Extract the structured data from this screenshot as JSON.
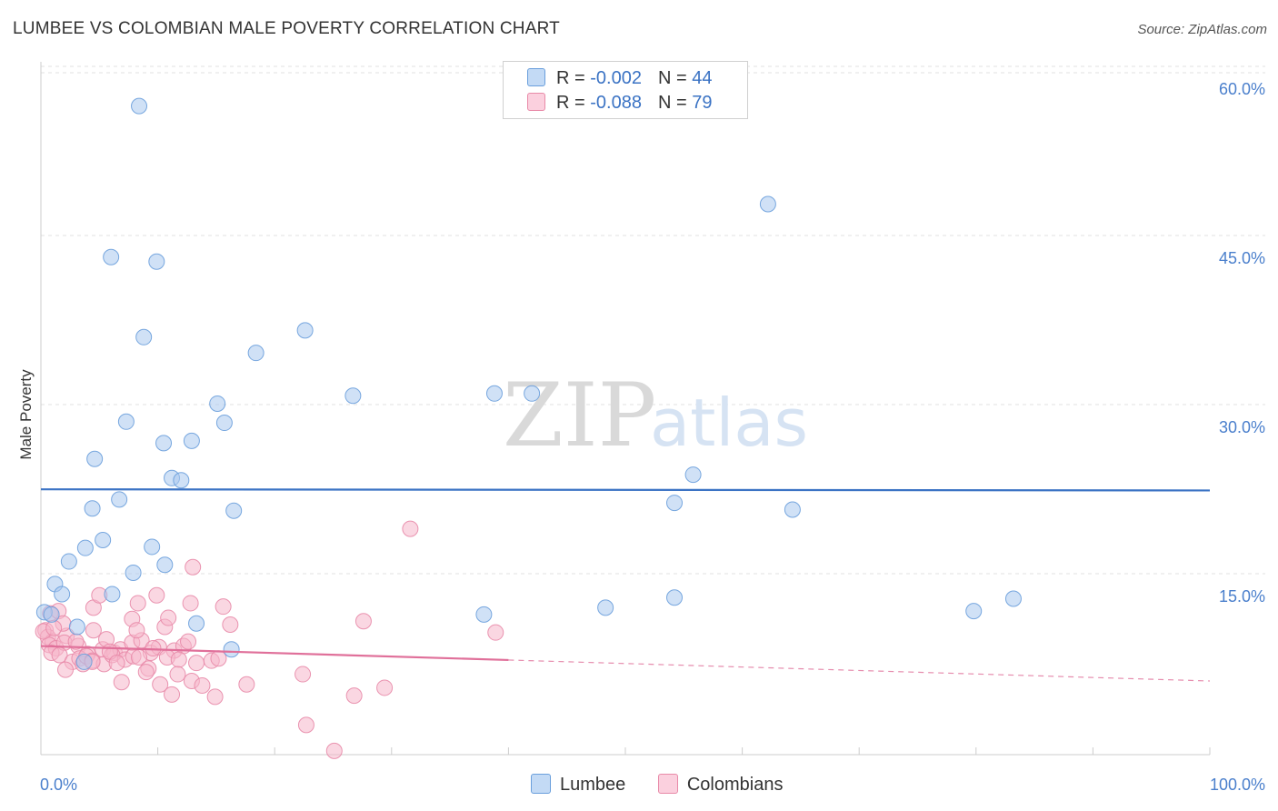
{
  "header": {
    "title": "LUMBEE VS COLOMBIAN MALE POVERTY CORRELATION CHART",
    "source": "Source: ZipAtlas.com"
  },
  "watermark": {
    "zip": "ZIP",
    "atlas": "atlas"
  },
  "legend": {
    "rows": [
      {
        "r_label": "R = ",
        "r_value": "-0.002",
        "n_label": "N = ",
        "n_value": "44"
      },
      {
        "r_label": "R = ",
        "r_value": "-0.088",
        "n_label": "N = ",
        "n_value": "79"
      }
    ]
  },
  "chart_data": {
    "type": "scatter",
    "title": "LUMBEE VS COLOMBIAN MALE POVERTY CORRELATION CHART",
    "xlabel": "",
    "ylabel": "Male Poverty",
    "xlim": [
      0,
      100
    ],
    "ylim": [
      0,
      63
    ],
    "x_tick_labels": [
      "0.0%",
      "100.0%"
    ],
    "y_ticks": [
      15,
      30,
      45,
      60
    ],
    "y_tick_labels": [
      "15.0%",
      "30.0%",
      "45.0%",
      "60.0%"
    ],
    "grid": true,
    "legend_position": "top-center",
    "colors": {
      "lumbee_fill": "#a9c8ef",
      "lumbee_stroke": "#6a9fdc",
      "lumbee_line": "#3b73c4",
      "colombian_fill": "#f6b6cb",
      "colombian_stroke": "#e88aa8",
      "colombian_line": "#e0709a"
    },
    "series": [
      {
        "name": "Lumbee",
        "trend": {
          "x": [
            0,
            100
          ],
          "y": [
            24.5,
            24.4
          ],
          "dashed_from": null
        },
        "points": [
          [
            8.4,
            58.5
          ],
          [
            6.0,
            45.1
          ],
          [
            9.9,
            44.7
          ],
          [
            62.2,
            49.8
          ],
          [
            8.8,
            38.0
          ],
          [
            18.4,
            36.6
          ],
          [
            22.6,
            38.6
          ],
          [
            26.7,
            32.8
          ],
          [
            15.1,
            32.1
          ],
          [
            38.8,
            33.0
          ],
          [
            42.0,
            33.0
          ],
          [
            7.3,
            30.5
          ],
          [
            10.5,
            28.6
          ],
          [
            12.9,
            28.8
          ],
          [
            15.7,
            30.4
          ],
          [
            4.6,
            27.2
          ],
          [
            11.2,
            25.5
          ],
          [
            12.0,
            25.3
          ],
          [
            55.8,
            25.8
          ],
          [
            4.4,
            22.8
          ],
          [
            6.7,
            23.6
          ],
          [
            16.5,
            22.6
          ],
          [
            54.2,
            23.3
          ],
          [
            64.3,
            22.7
          ],
          [
            5.3,
            20.0
          ],
          [
            3.8,
            19.3
          ],
          [
            9.5,
            19.4
          ],
          [
            2.4,
            18.1
          ],
          [
            10.6,
            17.8
          ],
          [
            7.9,
            17.1
          ],
          [
            1.2,
            16.1
          ],
          [
            1.8,
            15.2
          ],
          [
            6.1,
            15.2
          ],
          [
            0.3,
            13.6
          ],
          [
            0.9,
            13.4
          ],
          [
            37.9,
            13.4
          ],
          [
            48.3,
            14.0
          ],
          [
            54.2,
            14.9
          ],
          [
            79.8,
            13.7
          ],
          [
            83.2,
            14.8
          ],
          [
            3.1,
            12.3
          ],
          [
            13.3,
            12.6
          ],
          [
            16.3,
            10.3
          ],
          [
            3.7,
            9.2
          ]
        ]
      },
      {
        "name": "Colombians",
        "trend": {
          "x": [
            0,
            100
          ],
          "y": [
            10.6,
            7.5
          ],
          "dashed_from": 40
        },
        "points": [
          [
            31.6,
            21.0
          ],
          [
            13.0,
            17.6
          ],
          [
            0.8,
            13.5
          ],
          [
            1.5,
            13.7
          ],
          [
            4.5,
            14.0
          ],
          [
            5.0,
            15.1
          ],
          [
            8.3,
            14.4
          ],
          [
            9.9,
            15.1
          ],
          [
            12.8,
            14.4
          ],
          [
            15.6,
            14.1
          ],
          [
            27.6,
            12.8
          ],
          [
            38.9,
            11.8
          ],
          [
            0.4,
            12.0
          ],
          [
            0.6,
            11.4
          ],
          [
            1.0,
            11.0
          ],
          [
            2.2,
            11.5
          ],
          [
            4.5,
            12.0
          ],
          [
            7.8,
            13.0
          ],
          [
            10.6,
            12.3
          ],
          [
            10.9,
            13.1
          ],
          [
            16.2,
            12.5
          ],
          [
            0.7,
            10.7
          ],
          [
            1.3,
            10.4
          ],
          [
            2.0,
            10.9
          ],
          [
            3.2,
            10.6
          ],
          [
            4.0,
            9.9
          ],
          [
            5.3,
            10.3
          ],
          [
            5.6,
            11.2
          ],
          [
            6.3,
            10.0
          ],
          [
            6.8,
            10.3
          ],
          [
            7.8,
            10.9
          ],
          [
            8.6,
            11.1
          ],
          [
            9.4,
            10.0
          ],
          [
            10.1,
            10.5
          ],
          [
            11.4,
            10.2
          ],
          [
            12.2,
            10.6
          ],
          [
            0.9,
            10.0
          ],
          [
            1.6,
            9.8
          ],
          [
            2.7,
            9.2
          ],
          [
            3.3,
            9.5
          ],
          [
            3.6,
            9.0
          ],
          [
            3.9,
            9.7
          ],
          [
            4.4,
            9.3
          ],
          [
            5.4,
            9.0
          ],
          [
            6.1,
            9.8
          ],
          [
            7.2,
            9.4
          ],
          [
            7.9,
            9.7
          ],
          [
            8.4,
            9.6
          ],
          [
            9.2,
            8.6
          ],
          [
            10.8,
            9.6
          ],
          [
            11.8,
            9.4
          ],
          [
            13.3,
            9.1
          ],
          [
            14.6,
            9.3
          ],
          [
            2.1,
            8.5
          ],
          [
            4.4,
            9.2
          ],
          [
            9.0,
            8.3
          ],
          [
            11.7,
            8.1
          ],
          [
            15.2,
            9.5
          ],
          [
            6.9,
            7.4
          ],
          [
            10.2,
            7.2
          ],
          [
            12.9,
            7.5
          ],
          [
            13.8,
            7.1
          ],
          [
            17.6,
            7.2
          ],
          [
            22.4,
            8.1
          ],
          [
            29.4,
            6.9
          ],
          [
            11.2,
            6.3
          ],
          [
            14.9,
            6.1
          ],
          [
            26.8,
            6.2
          ],
          [
            22.7,
            3.6
          ],
          [
            25.1,
            1.3
          ],
          [
            1.9,
            12.6
          ],
          [
            5.9,
            10.1
          ],
          [
            3.0,
            11.0
          ],
          [
            8.2,
            12.0
          ],
          [
            12.6,
            11.0
          ],
          [
            0.2,
            11.9
          ],
          [
            1.1,
            12.2
          ],
          [
            6.5,
            9.1
          ],
          [
            9.6,
            10.4
          ]
        ]
      }
    ]
  },
  "bottom_legend": {
    "items": [
      "Lumbee",
      "Colombians"
    ]
  }
}
